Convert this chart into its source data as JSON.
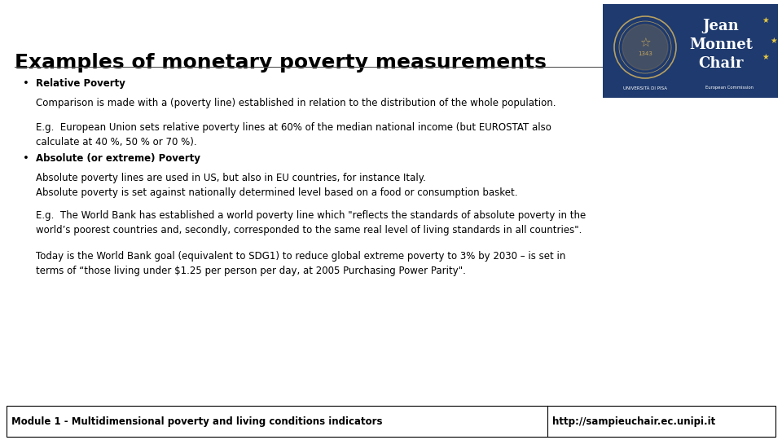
{
  "title": "Examples of monetary poverty measurements",
  "title_fontsize": 18,
  "title_color": "#000000",
  "background_color": "#ffffff",
  "logo_bg_color": "#1e3a6e",
  "footer_left": "Module 1 - Multidimensional poverty and living conditions indicators",
  "footer_right": "http://sampieuchair.ec.unipi.it",
  "footer_fontsize": 8.5,
  "bullet1_header": "Relative Poverty",
  "bullet1_text1": "Comparison is made with a (poverty line) established in relation to the distribution of the whole population.",
  "bullet1_text2": "E.g.  European Union sets relative poverty lines at 60% of the median national income (but EUROSTAT also\ncalculate at 40 %, 50 % or 70 %).",
  "bullet2_header": "Absolute (or extreme) Poverty",
  "bullet2_text1": "Absolute poverty lines are used in US, but also in EU countries, for instance Italy.\nAbsolute poverty is set against nationally determined level based on a food or consumption basket.",
  "bullet2_text2": "E.g.  The World Bank has established a world poverty line which \"reflects the standards of absolute poverty in the\nworld’s poorest countries and, secondly, corresponded to the same real level of living standards in all countries\".",
  "bullet2_text3": "Today is the World Bank goal (equivalent to SDG1) to reduce global extreme poverty to 3% by 2030 – is set in\nterms of “those living under $1.25 per person per day, at 2005 Purchasing Power Parity\".",
  "body_fontsize": 8.5,
  "header_fontsize": 8.5
}
